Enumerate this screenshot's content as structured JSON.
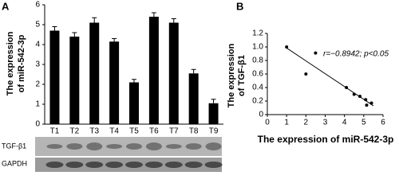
{
  "chart_data": [
    {
      "type": "bar",
      "panel": "A",
      "ylabel": [
        "The expression",
        "of miR-542-3p"
      ],
      "categories": [
        "T1",
        "T2",
        "T3",
        "T4",
        "T5",
        "T6",
        "T7",
        "T8",
        "T9"
      ],
      "values": [
        4.7,
        4.4,
        5.1,
        4.15,
        2.1,
        5.4,
        5.1,
        2.55,
        1.05
      ],
      "errors": [
        0.2,
        0.2,
        0.25,
        0.15,
        0.15,
        0.2,
        0.2,
        0.2,
        0.2
      ],
      "color": "#000000",
      "ylim": [
        0,
        6
      ],
      "yticks": [
        0,
        1,
        2,
        3,
        4,
        5,
        6
      ],
      "blot_labels": [
        "TGF-β1",
        "GAPDH"
      ]
    },
    {
      "type": "scatter",
      "panel": "B",
      "ylabel": [
        "The expression",
        "of TGF-β1"
      ],
      "xlabel": "The expression of miR-542-3p",
      "annotation": "r=−0.8942; p<0.05",
      "x": [
        1.0,
        2.0,
        2.5,
        4.1,
        4.5,
        4.8,
        5.1,
        5.15,
        5.4
      ],
      "values": [
        1.0,
        0.6,
        0.91,
        0.4,
        0.3,
        0.27,
        0.22,
        0.14,
        0.17
      ],
      "color": "#000000",
      "xlim": [
        0,
        6
      ],
      "xticks": [
        0,
        1,
        2,
        3,
        4,
        5,
        6
      ],
      "ylim": [
        0,
        1.2
      ],
      "yticks": [
        0,
        0.2,
        0.4,
        0.6,
        0.8,
        {
          "value": 1,
          "label": "1.0"
        },
        1.2
      ]
    }
  ]
}
